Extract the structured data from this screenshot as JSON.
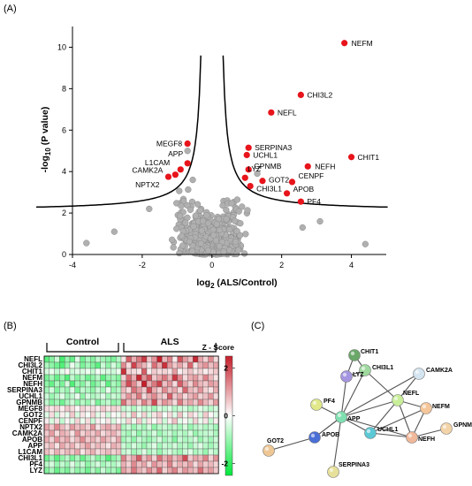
{
  "panels": {
    "a": "(A)",
    "b": "(B)",
    "c": "(C)"
  },
  "chart_data": [
    {
      "type": "scatter",
      "panel": "(A)",
      "title": "",
      "xlabel_main": "log",
      "xlabel_sub": "2",
      "xlabel_rest": " (ALS/Control)",
      "ylabel_main": "-log",
      "ylabel_sub": "10",
      "ylabel_rest": " (P value)",
      "xlim": [
        -4,
        5
      ],
      "ylim": [
        0,
        11
      ],
      "xticks": [
        -4,
        -2,
        0,
        2,
        4
      ],
      "yticks": [
        0,
        2,
        4,
        6,
        8,
        10
      ],
      "colors": {
        "significant": "#e8141b",
        "background": "#b0b0b0",
        "threshold": "#000000"
      },
      "threshold_curve": {
        "x0": 0.2,
        "c": 0.9,
        "base": 2.1
      },
      "significant": [
        {
          "label": "NEFM",
          "x": 3.8,
          "y": 10.2
        },
        {
          "label": "CHI3L2",
          "x": 2.55,
          "y": 7.7
        },
        {
          "label": "NEFL",
          "x": 1.7,
          "y": 6.85
        },
        {
          "label": "MEGF8",
          "x": -0.7,
          "y": 5.35
        },
        {
          "label": "SERPINA3",
          "x": 1.05,
          "y": 5.15
        },
        {
          "label": "UCHL1",
          "x": 1.0,
          "y": 4.8
        },
        {
          "label": "CHIT1",
          "x": 4.0,
          "y": 4.7
        },
        {
          "label": "APP",
          "x": -0.7,
          "y": 4.4
        },
        {
          "label": "L1CAM",
          "x": -0.9,
          "y": 4.1
        },
        {
          "label": "NEFH",
          "x": 2.75,
          "y": 4.25
        },
        {
          "label": "GPNMB",
          "x": 1.05,
          "y": 4.1
        },
        {
          "label": "CAMK2A",
          "x": -1.05,
          "y": 3.85
        },
        {
          "label": "LYZ",
          "x": 0.95,
          "y": 3.7
        },
        {
          "label": "NPTX2",
          "x": -1.25,
          "y": 3.75
        },
        {
          "label": "GOT2",
          "x": 1.45,
          "y": 3.55
        },
        {
          "label": "CENPF",
          "x": 2.3,
          "y": 3.5
        },
        {
          "label": "CHI3L1",
          "x": 1.1,
          "y": 3.3
        },
        {
          "label": "APOB",
          "x": 2.15,
          "y": 2.95
        },
        {
          "label": "PF4",
          "x": 2.55,
          "y": 2.55
        }
      ]
    },
    {
      "type": "heatmap",
      "panel": "(B)",
      "groups": [
        "Control",
        "ALS"
      ],
      "legend_title": "Z - Score",
      "legend_ticks": [
        2,
        0,
        -2
      ],
      "color_scale": {
        "low": "#00e83a",
        "mid": "#ffffff",
        "high": "#c41e2a"
      },
      "rows": [
        "NEFL",
        "CHI3L2",
        "CHIT1",
        "NEFM",
        "NEFH",
        "SERPINA3",
        "UCHL1",
        "GPNMB",
        "MEGF8",
        "GOT2",
        "CENPF",
        "NPTX2",
        "CAMK2A",
        "APOB",
        "APP",
        "L1CAM",
        "CHI3L1",
        "PF4",
        "LYZ"
      ],
      "values": [
        [
          -1.6,
          -1.2,
          -0.5,
          -1.8,
          -1.0,
          -1.5,
          -0.3,
          -1.4,
          -0.8,
          -1.2,
          -0.6,
          -0.9,
          -1.1,
          -1.3,
          -0.7,
          0.3,
          1.8,
          0.9,
          1.5,
          2.2,
          0.6,
          1.2,
          2.6,
          0.8,
          1.4,
          0.2,
          1.9,
          1.1,
          0.7,
          2.4,
          1.0,
          0.5,
          1.3,
          0.4
        ],
        [
          -0.8,
          -1.1,
          -1.4,
          -1.7,
          -1.0,
          -0.2,
          -0.6,
          -1.3,
          -0.9,
          -1.2,
          -1.6,
          -0.5,
          -1.1,
          -0.4,
          -0.9,
          1.3,
          0.4,
          2.1,
          1.2,
          0.8,
          0.3,
          1.6,
          0.9,
          2.3,
          1.1,
          0.6,
          1.0,
          0.5,
          1.7,
          0.3,
          0.9,
          1.2,
          0.7,
          1.0
        ],
        [
          -0.4,
          -0.2,
          -0.6,
          -0.3,
          0.1,
          -0.5,
          -0.3,
          -0.4,
          -0.2,
          -0.6,
          -0.1,
          -0.3,
          -0.4,
          -0.5,
          -0.2,
          2.3,
          0.5,
          0.4,
          0.3,
          1.8,
          0.2,
          0.6,
          0.4,
          0.5,
          0.3,
          1.1,
          0.2,
          0.4,
          0.7,
          0.3,
          0.5,
          0.2,
          0.4,
          0.6
        ],
        [
          -1.3,
          -0.9,
          -1.5,
          -1.0,
          -1.7,
          -0.6,
          -1.2,
          -0.8,
          -1.4,
          -1.1,
          -0.7,
          -1.6,
          -1.0,
          -0.9,
          -1.2,
          0.5,
          1.7,
          0.9,
          2.4,
          1.2,
          1.9,
          0.6,
          1.0,
          1.5,
          0.8,
          2.2,
          1.3,
          0.4,
          0.9,
          1.1,
          0.6,
          1.4,
          0.8,
          0.3
        ],
        [
          -1.1,
          -1.5,
          -0.8,
          -1.3,
          -0.4,
          -1.7,
          -0.9,
          -1.2,
          -0.6,
          -1.4,
          -1.0,
          -0.5,
          -1.6,
          -0.8,
          -1.1,
          1.0,
          2.0,
          1.3,
          0.6,
          2.6,
          0.9,
          1.5,
          2.1,
          0.7,
          1.2,
          0.4,
          1.8,
          1.0,
          0.5,
          1.3,
          0.8,
          0.6,
          1.1,
          0.9
        ],
        [
          -0.9,
          -0.4,
          -1.2,
          -0.7,
          -1.0,
          -0.3,
          -1.3,
          -0.6,
          -0.8,
          -1.1,
          -0.5,
          -0.9,
          -0.2,
          -1.0,
          -0.7,
          0.8,
          0.4,
          1.6,
          1.1,
          0.6,
          2.0,
          0.9,
          0.5,
          1.3,
          0.7,
          1.0,
          0.4,
          1.7,
          0.8,
          0.6,
          1.2,
          0.5,
          0.3,
          0.9
        ],
        [
          -0.5,
          -1.0,
          -0.7,
          -0.3,
          -0.9,
          -0.6,
          -0.2,
          -1.1,
          -0.4,
          -0.8,
          -0.6,
          -0.3,
          -0.9,
          -0.5,
          -0.7,
          0.6,
          1.2,
          0.8,
          1.5,
          0.4,
          0.9,
          1.3,
          0.7,
          0.5,
          1.8,
          0.6,
          1.0,
          0.4,
          0.8,
          1.1,
          0.5,
          0.7,
          1.2,
          0.4
        ],
        [
          -0.6,
          -1.2,
          -0.9,
          -1.4,
          -0.8,
          -0.5,
          -1.1,
          -0.7,
          -1.0,
          -0.4,
          -1.3,
          -0.8,
          -0.6,
          -1.1,
          -0.9,
          1.6,
          0.7,
          1.1,
          0.5,
          1.4,
          0.8,
          2.0,
          0.6,
          1.2,
          0.9,
          0.4,
          1.5,
          0.7,
          1.0,
          0.6,
          1.3,
          0.8,
          0.5,
          1.1
        ],
        [
          0.4,
          0.3,
          0.5,
          0.2,
          0.6,
          0.4,
          0.1,
          0.5,
          0.3,
          0.4,
          0.2,
          0.6,
          0.3,
          0.5,
          0.4,
          -0.6,
          -0.4,
          -0.8,
          -0.3,
          -0.7,
          -0.5,
          -0.9,
          -0.4,
          -0.6,
          -0.3,
          -0.7,
          -0.5,
          -0.4,
          -0.8,
          -0.6,
          -0.3,
          -0.5,
          -0.7,
          -0.4
        ],
        [
          -0.3,
          0.4,
          -0.5,
          0.2,
          -0.2,
          0.6,
          -0.4,
          0.3,
          -0.1,
          0.5,
          -0.3,
          0.2,
          -0.5,
          0.1,
          -0.2,
          0.4,
          -0.3,
          0.8,
          -0.2,
          0.5,
          -0.4,
          0.3,
          0.6,
          -0.1,
          0.4,
          -0.3,
          0.7,
          -0.2,
          0.5,
          0.2,
          -0.4,
          0.6,
          0.1,
          -0.3
        ],
        [
          0.2,
          -0.4,
          0.3,
          -0.6,
          0.1,
          -0.3,
          0.5,
          -0.2,
          0.4,
          -0.5,
          0.2,
          -0.1,
          0.3,
          -0.4,
          0.1,
          -0.3,
          0.5,
          -0.2,
          0.6,
          -0.4,
          0.3,
          -0.1,
          0.4,
          -0.5,
          0.2,
          0.7,
          -0.3,
          0.1,
          -0.4,
          0.5,
          -0.2,
          0.3,
          -0.6,
          0.2
        ],
        [
          1.0,
          0.6,
          1.3,
          0.8,
          0.4,
          1.1,
          0.7,
          0.9,
          0.5,
          1.2,
          0.3,
          0.8,
          1.0,
          0.6,
          0.9,
          -0.8,
          -0.5,
          -1.0,
          -0.6,
          -0.9,
          -0.4,
          -1.1,
          -0.7,
          -0.5,
          -0.8,
          -0.6,
          -0.9,
          -0.4,
          -1.0,
          -0.7,
          -0.5,
          -0.8,
          -0.6,
          -0.9
        ],
        [
          0.6,
          1.1,
          0.4,
          0.9,
          0.7,
          0.3,
          1.2,
          0.5,
          0.8,
          0.6,
          1.0,
          0.4,
          0.7,
          0.9,
          0.5,
          -0.7,
          -0.9,
          -0.5,
          -1.1,
          -0.6,
          -0.8,
          -0.4,
          -1.0,
          -0.7,
          -0.5,
          -0.9,
          -0.6,
          -0.8,
          -0.4,
          -1.0,
          -0.7,
          -0.6,
          -0.5,
          -0.8
        ],
        [
          0.9,
          0.5,
          1.2,
          0.7,
          1.0,
          0.4,
          0.8,
          1.3,
          0.6,
          0.9,
          0.5,
          1.1,
          0.7,
          0.4,
          1.0,
          -0.9,
          -0.6,
          -1.1,
          -0.5,
          -0.8,
          -1.0,
          -0.7,
          -0.4,
          -0.9,
          -0.6,
          -1.2,
          -0.5,
          -0.8,
          -0.7,
          -0.4,
          -1.0,
          -0.6,
          -0.9,
          -0.5
        ],
        [
          0.5,
          0.8,
          0.3,
          1.0,
          0.6,
          0.9,
          0.4,
          0.7,
          1.1,
          0.5,
          0.8,
          0.6,
          0.3,
          0.9,
          0.7,
          -0.5,
          -0.8,
          -0.4,
          -0.7,
          -1.0,
          -0.6,
          -0.3,
          -0.9,
          -0.5,
          -0.7,
          -0.4,
          -0.8,
          -0.6,
          -1.0,
          -0.5,
          -0.3,
          -0.7,
          -0.9,
          -0.6
        ],
        [
          0.7,
          0.4,
          0.9,
          0.5,
          0.8,
          0.6,
          1.0,
          0.3,
          0.7,
          0.9,
          0.4,
          0.6,
          0.8,
          0.5,
          0.7,
          -0.6,
          -0.4,
          -0.9,
          -0.7,
          -0.3,
          -0.8,
          -0.5,
          -1.0,
          -0.6,
          -0.4,
          -0.7,
          -0.9,
          -0.5,
          -0.3,
          -0.8,
          -0.6,
          -1.0,
          -0.4,
          -0.7
        ],
        [
          -1.4,
          -0.9,
          -1.6,
          -1.1,
          -0.7,
          -1.3,
          -0.8,
          -1.5,
          -1.0,
          -0.6,
          -1.2,
          -0.9,
          -1.7,
          -1.1,
          -0.8,
          1.4,
          0.6,
          1.0,
          1.8,
          0.7,
          1.2,
          0.5,
          1.6,
          0.9,
          1.3,
          0.7,
          1.1,
          2.0,
          0.6,
          1.0,
          0.8,
          1.4,
          0.5,
          1.2
        ],
        [
          -0.7,
          -0.4,
          -1.0,
          -0.6,
          -0.9,
          -0.3,
          -0.8,
          -0.5,
          -1.1,
          -0.7,
          -0.4,
          -0.9,
          -0.6,
          -0.8,
          -0.5,
          0.9,
          0.5,
          1.3,
          0.7,
          1.0,
          0.4,
          1.2,
          0.8,
          0.6,
          1.4,
          0.5,
          0.9,
          0.7,
          1.1,
          0.4,
          1.0,
          0.6,
          0.8,
          0.5
        ],
        [
          -1.2,
          -0.8,
          -1.5,
          -1.0,
          -1.3,
          -0.6,
          -1.1,
          -0.9,
          -1.4,
          -0.7,
          -1.2,
          -0.5,
          -1.0,
          -0.8,
          -1.3,
          1.1,
          0.7,
          1.5,
          0.9,
          0.6,
          1.3,
          0.8,
          1.7,
          0.5,
          1.0,
          1.4,
          0.6,
          1.2,
          0.9,
          0.7,
          1.6,
          0.8,
          1.1,
          0.6
        ]
      ]
    },
    {
      "type": "network",
      "panel": "(C)",
      "nodes": [
        {
          "label": "CHIT1",
          "color": "#6aa86a"
        },
        {
          "label": "CHI3L1",
          "color": "#9fd99f"
        },
        {
          "label": "LYZ",
          "color": "#a595e0"
        },
        {
          "label": "CAMK2A",
          "color": "#d4e4f0"
        },
        {
          "label": "NEFL",
          "color": "#c8ee9a"
        },
        {
          "label": "PF4",
          "color": "#e0e88a"
        },
        {
          "label": "NEFM",
          "color": "#f5c69a"
        },
        {
          "label": "APP",
          "color": "#7fdfb0"
        },
        {
          "label": "UCHL1",
          "color": "#5cc8d6"
        },
        {
          "label": "APOB",
          "color": "#4a6fd6"
        },
        {
          "label": "GPNMB",
          "color": "#f3d4a8"
        },
        {
          "label": "NEFH",
          "color": "#f0b89a"
        },
        {
          "label": "GOT2",
          "color": "#eec795"
        },
        {
          "label": "SERPINA3",
          "color": "#e6e09a"
        }
      ],
      "edges": [
        [
          "CHIT1",
          "CHI3L1"
        ],
        [
          "CHIT1",
          "LYZ"
        ],
        [
          "CHI3L1",
          "LYZ"
        ],
        [
          "CHI3L1",
          "APP"
        ],
        [
          "CHI3L1",
          "NEFL"
        ],
        [
          "LYZ",
          "APP"
        ],
        [
          "CAMK2A",
          "NEFL"
        ],
        [
          "CAMK2A",
          "APP"
        ],
        [
          "NEFL",
          "NEFM"
        ],
        [
          "NEFL",
          "NEFH"
        ],
        [
          "NEFL",
          "UCHL1"
        ],
        [
          "NEFL",
          "APP"
        ],
        [
          "NEFM",
          "NEFH"
        ],
        [
          "NEFM",
          "UCHL1"
        ],
        [
          "NEFH",
          "UCHL1"
        ],
        [
          "NEFH",
          "GPNMB"
        ],
        [
          "PF4",
          "APP"
        ],
        [
          "APP",
          "APOB"
        ],
        [
          "APP",
          "UCHL1"
        ],
        [
          "APP",
          "NEFH"
        ],
        [
          "APP",
          "SERPINA3"
        ],
        [
          "APOB",
          "GOT2"
        ],
        [
          "APOB",
          "APP"
        ]
      ]
    }
  ]
}
